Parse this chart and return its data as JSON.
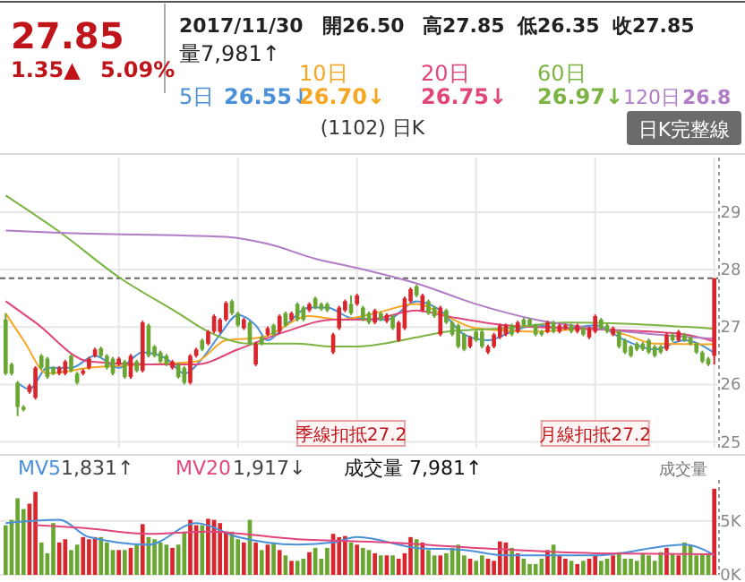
{
  "chart_data": [
    {
      "type": "other",
      "annotations": [
        "27.85",
        "1.35▲",
        "5.09%",
        "2017/11/30",
        "開26.50",
        "高27.85",
        "低26.35",
        "收27.85",
        "量7,981↑",
        "日K完整線"
      ]
    },
    {
      "type": "candlestick",
      "title": "(1102) 日K",
      "categories": [
        null,
        null,
        null,
        null,
        null,
        null,
        null,
        null,
        null,
        null,
        null,
        null,
        null,
        null,
        null,
        null,
        null,
        null,
        null,
        null,
        null,
        null,
        null,
        null,
        null,
        null,
        null,
        null,
        null,
        null,
        null,
        null,
        null,
        null,
        null,
        null,
        null,
        null,
        null,
        null,
        null,
        null,
        null,
        null,
        null,
        null,
        null,
        null,
        null,
        null,
        null,
        null,
        null,
        null,
        null,
        null,
        null,
        null,
        null,
        null,
        null,
        null,
        null,
        null,
        null,
        null,
        null,
        null,
        null,
        null,
        null,
        null,
        null,
        null,
        null,
        null,
        null,
        null,
        null,
        null,
        null,
        null,
        null,
        null,
        null,
        null,
        null,
        null,
        null,
        null,
        null,
        null,
        null,
        null,
        null,
        null,
        null,
        null,
        null,
        null,
        null,
        null,
        null,
        null,
        null,
        null,
        null,
        null,
        null,
        null,
        null,
        null,
        null,
        null,
        null,
        null,
        null,
        null,
        null,
        null
      ],
      "ohlc": [
        [
          27.13,
          27.24,
          26.16,
          26.19
        ],
        [
          26.35,
          26.38,
          26.16,
          26.19
        ],
        [
          26.03,
          26.06,
          25.45,
          25.61
        ],
        [
          25.61,
          25.64,
          25.53,
          25.56
        ],
        [
          25.87,
          26.01,
          25.84,
          25.98
        ],
        [
          25.77,
          26.32,
          25.74,
          26.29
        ],
        [
          26.5,
          26.53,
          26.26,
          26.29
        ],
        [
          26.45,
          26.48,
          26.1,
          26.13
        ],
        [
          26.29,
          26.32,
          26.16,
          26.19
        ],
        [
          26.19,
          26.32,
          26.16,
          26.29
        ],
        [
          26.19,
          26.43,
          26.16,
          26.4
        ],
        [
          26.5,
          26.53,
          26.21,
          26.24
        ],
        [
          26.19,
          26.22,
          26.0,
          26.03
        ],
        [
          26.19,
          26.27,
          26.16,
          26.24
        ],
        [
          26.29,
          26.48,
          26.26,
          26.45
        ],
        [
          26.5,
          26.64,
          26.47,
          26.61
        ],
        [
          26.63,
          26.66,
          26.47,
          26.5
        ],
        [
          26.5,
          26.53,
          26.26,
          26.29
        ],
        [
          26.45,
          26.48,
          26.16,
          26.19
        ],
        [
          26.35,
          26.48,
          26.32,
          26.45
        ],
        [
          26.4,
          26.43,
          26.1,
          26.13
        ],
        [
          26.13,
          26.53,
          26.1,
          26.5
        ],
        [
          26.4,
          26.43,
          26.21,
          26.24
        ],
        [
          26.24,
          27.11,
          26.21,
          27.08
        ],
        [
          27.03,
          27.06,
          26.47,
          26.5
        ],
        [
          26.66,
          26.69,
          26.47,
          26.5
        ],
        [
          26.56,
          26.59,
          26.37,
          26.4
        ],
        [
          26.5,
          26.53,
          26.32,
          26.35
        ],
        [
          26.29,
          26.43,
          26.26,
          26.4
        ],
        [
          26.35,
          26.38,
          26.1,
          26.13
        ],
        [
          26.29,
          26.32,
          26.0,
          26.03
        ],
        [
          26.03,
          26.53,
          26.0,
          26.5
        ],
        [
          26.5,
          26.64,
          26.47,
          26.61
        ],
        [
          26.77,
          26.8,
          26.58,
          26.61
        ],
        [
          26.71,
          26.95,
          26.68,
          26.92
        ],
        [
          26.92,
          27.22,
          26.89,
          27.19
        ],
        [
          26.92,
          27.16,
          26.89,
          27.13
        ],
        [
          27.13,
          27.45,
          27.1,
          27.42
        ],
        [
          27.45,
          27.48,
          27.21,
          27.24
        ],
        [
          27.24,
          27.27,
          27.0,
          27.03
        ],
        [
          26.98,
          27.16,
          26.95,
          27.13
        ],
        [
          27.08,
          27.11,
          26.68,
          26.71
        ],
        [
          26.35,
          26.74,
          26.32,
          26.71
        ],
        [
          26.82,
          26.85,
          26.68,
          26.71
        ],
        [
          26.87,
          27.01,
          26.84,
          26.98
        ],
        [
          27.03,
          27.06,
          26.84,
          26.87
        ],
        [
          26.92,
          27.22,
          26.89,
          27.19
        ],
        [
          27.24,
          27.27,
          27.0,
          27.03
        ],
        [
          27.13,
          27.27,
          27.1,
          27.24
        ],
        [
          27.4,
          27.43,
          27.1,
          27.13
        ],
        [
          27.34,
          27.37,
          27.1,
          27.13
        ],
        [
          27.29,
          27.43,
          27.26,
          27.4
        ],
        [
          27.5,
          27.53,
          27.31,
          27.34
        ],
        [
          27.4,
          27.43,
          27.28,
          27.31
        ],
        [
          27.4,
          27.43,
          27.26,
          27.29
        ],
        [
          26.56,
          26.9,
          26.53,
          26.87
        ],
        [
          26.98,
          27.37,
          26.95,
          27.34
        ],
        [
          27.29,
          27.48,
          27.26,
          27.45
        ],
        [
          27.4,
          27.55,
          27.21,
          27.24
        ],
        [
          27.4,
          27.58,
          27.37,
          27.55
        ],
        [
          27.34,
          27.37,
          27.1,
          27.13
        ],
        [
          27.24,
          27.27,
          27.05,
          27.08
        ],
        [
          27.08,
          27.32,
          27.05,
          27.29
        ],
        [
          27.24,
          27.27,
          27.1,
          27.13
        ],
        [
          27.1,
          27.24,
          27.07,
          27.21
        ],
        [
          27.19,
          27.22,
          26.95,
          26.98
        ],
        [
          26.77,
          27.11,
          26.74,
          27.08
        ],
        [
          26.98,
          27.53,
          26.95,
          27.5
        ],
        [
          27.45,
          27.69,
          27.42,
          27.66
        ],
        [
          27.71,
          27.74,
          27.52,
          27.55
        ],
        [
          27.29,
          27.58,
          27.26,
          27.55
        ],
        [
          27.45,
          27.48,
          27.21,
          27.24
        ],
        [
          27.34,
          27.37,
          27.16,
          27.19
        ],
        [
          26.87,
          27.37,
          26.84,
          27.34
        ],
        [
          27.29,
          27.32,
          27.05,
          27.08
        ],
        [
          27.08,
          27.11,
          26.84,
          26.87
        ],
        [
          27.03,
          27.06,
          26.63,
          26.66
        ],
        [
          26.87,
          26.9,
          26.58,
          26.61
        ],
        [
          26.66,
          26.85,
          26.63,
          26.82
        ],
        [
          26.92,
          26.95,
          26.74,
          26.77
        ],
        [
          26.92,
          26.95,
          26.63,
          26.66
        ],
        [
          26.56,
          26.69,
          26.53,
          26.66
        ],
        [
          26.66,
          26.9,
          26.63,
          26.87
        ],
        [
          26.82,
          27.06,
          26.79,
          27.03
        ],
        [
          26.87,
          27.06,
          26.84,
          27.03
        ],
        [
          27.03,
          27.06,
          26.84,
          26.87
        ],
        [
          26.92,
          27.11,
          26.89,
          27.08
        ],
        [
          27.13,
          27.16,
          27.0,
          27.03
        ],
        [
          27.13,
          27.16,
          27.0,
          27.03
        ],
        [
          27.03,
          27.06,
          26.84,
          26.87
        ],
        [
          26.92,
          26.95,
          26.84,
          26.87
        ],
        [
          26.92,
          27.11,
          26.89,
          27.08
        ],
        [
          27.08,
          27.11,
          26.89,
          26.92
        ],
        [
          26.92,
          27.06,
          26.89,
          27.03
        ],
        [
          26.98,
          27.06,
          26.95,
          27.03
        ],
        [
          27.03,
          27.06,
          26.89,
          26.92
        ],
        [
          26.92,
          27.06,
          26.89,
          27.03
        ],
        [
          26.98,
          27.01,
          26.84,
          26.87
        ],
        [
          26.82,
          27.01,
          26.79,
          26.98
        ],
        [
          26.92,
          27.22,
          26.89,
          27.19
        ],
        [
          27.13,
          27.16,
          26.95,
          26.98
        ],
        [
          27.03,
          27.06,
          26.89,
          26.92
        ],
        [
          26.87,
          27.01,
          26.84,
          26.98
        ],
        [
          26.92,
          26.95,
          26.63,
          26.66
        ],
        [
          26.77,
          26.8,
          26.53,
          26.56
        ],
        [
          26.66,
          26.69,
          26.47,
          26.5
        ],
        [
          26.71,
          26.74,
          26.58,
          26.61
        ],
        [
          26.71,
          26.74,
          26.58,
          26.61
        ],
        [
          26.77,
          26.8,
          26.53,
          26.56
        ],
        [
          26.66,
          26.69,
          26.47,
          26.5
        ],
        [
          26.66,
          26.69,
          26.53,
          26.56
        ],
        [
          26.61,
          26.9,
          26.58,
          26.87
        ],
        [
          26.87,
          26.9,
          26.74,
          26.77
        ],
        [
          26.77,
          26.95,
          26.74,
          26.92
        ],
        [
          26.87,
          26.9,
          26.74,
          26.77
        ],
        [
          26.82,
          26.85,
          26.68,
          26.71
        ],
        [
          26.71,
          26.74,
          26.53,
          26.56
        ],
        [
          26.56,
          26.59,
          26.37,
          26.4
        ],
        [
          26.45,
          26.48,
          26.32,
          26.35
        ],
        [
          26.5,
          27.85,
          26.35,
          27.85
        ]
      ],
      "colors": [
        "#6aa632",
        "#6aa632",
        "#6aa632",
        "#6aa632",
        "#d9262c",
        "#d9262c",
        "#6aa632",
        "#6aa632",
        "#6aa632",
        "#d9262c",
        "#d9262c",
        "#6aa632",
        "#6aa632",
        "#d9262c",
        "#d9262c",
        "#d9262c",
        "#6aa632",
        "#6aa632",
        "#6aa632",
        "#d9262c",
        "#6aa632",
        "#d9262c",
        "#6aa632",
        "#d9262c",
        "#6aa632",
        "#6aa632",
        "#6aa632",
        "#6aa632",
        "#d9262c",
        "#6aa632",
        "#6aa632",
        "#d9262c",
        "#d9262c",
        "#6aa632",
        "#d9262c",
        "#d9262c",
        "#d9262c",
        "#d9262c",
        "#6aa632",
        "#6aa632",
        "#d9262c",
        "#6aa632",
        "#d9262c",
        "#6aa632",
        "#d9262c",
        "#6aa632",
        "#d9262c",
        "#6aa632",
        "#d9262c",
        "#6aa632",
        "#6aa632",
        "#d9262c",
        "#6aa632",
        "#6aa632",
        "#6aa632",
        "#d9262c",
        "#d9262c",
        "#d9262c",
        "#6aa632",
        "#d9262c",
        "#6aa632",
        "#6aa632",
        "#d9262c",
        "#6aa632",
        "#d9262c",
        "#6aa632",
        "#d9262c",
        "#d9262c",
        "#d9262c",
        "#6aa632",
        "#d9262c",
        "#6aa632",
        "#6aa632",
        "#d9262c",
        "#6aa632",
        "#6aa632",
        "#6aa632",
        "#6aa632",
        "#d9262c",
        "#6aa632",
        "#6aa632",
        "#d9262c",
        "#d9262c",
        "#d9262c",
        "#d9262c",
        "#6aa632",
        "#d9262c",
        "#6aa632",
        "#6aa632",
        "#6aa632",
        "#6aa632",
        "#d9262c",
        "#6aa632",
        "#d9262c",
        "#d9262c",
        "#6aa632",
        "#d9262c",
        "#6aa632",
        "#d9262c",
        "#d9262c",
        "#6aa632",
        "#6aa632",
        "#d9262c",
        "#6aa632",
        "#6aa632",
        "#6aa632",
        "#6aa632",
        "#6aa632",
        "#6aa632",
        "#6aa632",
        "#6aa632",
        "#d9262c",
        "#6aa632",
        "#d9262c",
        "#6aa632",
        "#6aa632",
        "#6aa632",
        "#6aa632",
        "#6aa632",
        "#d9262c"
      ],
      "series": [
        {
          "name": "5日",
          "type": "line",
          "color": "#4a90d9",
          "values": [
            null,
            null,
            26.03,
            null,
            25.92,
            null,
            null,
            26.29,
            null,
            null,
            null,
            26.29,
            null,
            null,
            null,
            26.5,
            null,
            null,
            null,
            26.29,
            null,
            null,
            null,
            26.56,
            null,
            null,
            null,
            26.45,
            null,
            null,
            26.19,
            null,
            null,
            26.45,
            null,
            null,
            26.87,
            null,
            null,
            27.21,
            null,
            null,
            27.03,
            null,
            26.77,
            null,
            null,
            27.03,
            null,
            null,
            null,
            27.34,
            null,
            null,
            27.34,
            null,
            null,
            null,
            27.16,
            null,
            null,
            null,
            null,
            null,
            27.13,
            null,
            null,
            null,
            null,
            27.45,
            null,
            null,
            null,
            27.29,
            null,
            null,
            null,
            26.87,
            null,
            null,
            null,
            26.77,
            null,
            null,
            null,
            26.92,
            null,
            null,
            null,
            27.03,
            null,
            null,
            null,
            null,
            26.98,
            null,
            null,
            null,
            null,
            27.03,
            null,
            null,
            null,
            null,
            26.77,
            null,
            null,
            null,
            null,
            26.61,
            null,
            null,
            null,
            null,
            26.77,
            null,
            null,
            null,
            null,
            26.55
          ]
        },
        {
          "name": "10日",
          "type": "line",
          "color": "#f5a623",
          "values": [
            27.24,
            null,
            null,
            26.77,
            null,
            null,
            null,
            26.19,
            null,
            null,
            null,
            null,
            null,
            null,
            26.29,
            null,
            null,
            null,
            null,
            null,
            null,
            null,
            null,
            null,
            26.35,
            null,
            null,
            null,
            null,
            null,
            null,
            null,
            26.4,
            null,
            null,
            null,
            null,
            26.77,
            null,
            null,
            null,
            null,
            null,
            26.82,
            null,
            null,
            null,
            null,
            null,
            null,
            null,
            27.19,
            null,
            null,
            null,
            null,
            27.13,
            null,
            null,
            null,
            null,
            null,
            27.24,
            null,
            null,
            null,
            null,
            null,
            null,
            27.4,
            null,
            null,
            null,
            null,
            27.19,
            null,
            null,
            null,
            null,
            26.98,
            null,
            null,
            null,
            null,
            null,
            null,
            null,
            null,
            null,
            26.92,
            null,
            null,
            null,
            null,
            null,
            null,
            null,
            null,
            null,
            26.98,
            null,
            null,
            null,
            null,
            26.87,
            null,
            null,
            null,
            null,
            26.71,
            null,
            null,
            null,
            null,
            null,
            null,
            null,
            null,
            null,
            26.7
          ]
        },
        {
          "name": "20日",
          "type": "line",
          "color": "#e0457b",
          "values": [
            27.45,
            null,
            null,
            null,
            null,
            27.08,
            null,
            null,
            null,
            null,
            null,
            null,
            null,
            null,
            26.4,
            null,
            null,
            null,
            null,
            null,
            null,
            null,
            null,
            null,
            26.35,
            null,
            null,
            null,
            null,
            null,
            null,
            null,
            26.35,
            null,
            null,
            null,
            null,
            null,
            null,
            26.61,
            null,
            null,
            null,
            null,
            null,
            null,
            null,
            26.92,
            null,
            null,
            null,
            null,
            null,
            null,
            null,
            27.13,
            null,
            null,
            null,
            null,
            null,
            27.13,
            null,
            null,
            null,
            null,
            null,
            null,
            null,
            27.29,
            null,
            null,
            null,
            null,
            27.19,
            null,
            null,
            null,
            null,
            null,
            null,
            null,
            null,
            null,
            27.03,
            null,
            null,
            null,
            null,
            null,
            null,
            null,
            null,
            null,
            26.98,
            null,
            null,
            null,
            null,
            null,
            null,
            null,
            null,
            null,
            26.94,
            null,
            null,
            null,
            null,
            null,
            null,
            null,
            null,
            null,
            26.87,
            null,
            null,
            null,
            null,
            26.75
          ]
        },
        {
          "name": "60日",
          "type": "line",
          "color": "#7cb342",
          "values": [
            29.29,
            null,
            null,
            null,
            null,
            null,
            null,
            null,
            null,
            28.66,
            null,
            null,
            null,
            null,
            null,
            null,
            null,
            null,
            null,
            27.87,
            null,
            null,
            null,
            null,
            null,
            null,
            null,
            null,
            null,
            27.24,
            null,
            null,
            null,
            null,
            26.92,
            null,
            null,
            null,
            null,
            null,
            null,
            26.71,
            null,
            null,
            null,
            null,
            null,
            null,
            null,
            26.71,
            null,
            null,
            null,
            null,
            null,
            26.66,
            null,
            null,
            null,
            26.66,
            null,
            null,
            null,
            null,
            null,
            null,
            null,
            null,
            null,
            26.82,
            null,
            null,
            null,
            null,
            26.92,
            null,
            null,
            null,
            null,
            null,
            null,
            null,
            null,
            null,
            26.98,
            null,
            null,
            null,
            null,
            null,
            null,
            null,
            null,
            null,
            27.08,
            null,
            null,
            null,
            null,
            null,
            null,
            null,
            null,
            null,
            27.06,
            null,
            null,
            null,
            null,
            null,
            null,
            null,
            null,
            null,
            null,
            null,
            null,
            null,
            null,
            26.97
          ]
        },
        {
          "name": "120日",
          "type": "line",
          "color": "#b07cc6",
          "values": [
            28.68,
            null,
            null,
            null,
            null,
            null,
            null,
            null,
            null,
            28.64,
            null,
            null,
            null,
            null,
            null,
            null,
            null,
            null,
            null,
            null,
            null,
            null,
            null,
            null,
            null,
            null,
            null,
            null,
            null,
            null,
            null,
            null,
            null,
            null,
            null,
            null,
            null,
            28.57,
            null,
            null,
            null,
            null,
            null,
            null,
            28.45,
            null,
            null,
            null,
            null,
            null,
            null,
            null,
            28.19,
            null,
            null,
            null,
            null,
            null,
            null,
            28.03,
            null,
            null,
            null,
            null,
            null,
            null,
            null,
            null,
            null,
            27.76,
            null,
            null,
            null,
            null,
            null,
            null,
            null,
            null,
            null,
            27.4,
            null,
            null,
            null,
            null,
            null,
            null,
            null,
            null,
            null,
            27.13,
            null,
            null,
            null,
            null,
            null,
            null,
            null,
            null,
            null,
            26.98,
            null,
            null,
            null,
            null,
            null,
            null,
            null,
            null,
            null,
            26.87,
            null,
            null,
            null,
            null,
            null,
            null,
            null,
            null,
            null,
            26.8
          ]
        }
      ],
      "ylim": [
        24.9,
        29.95
      ],
      "yticks": [
        25,
        26,
        27,
        28,
        29
      ],
      "grid": true,
      "legend": "top",
      "ref_lines": [
        {
          "axis": "y",
          "value": 27.85,
          "color": "#666666",
          "line_style": "dashed"
        }
      ],
      "annotations": [
        "26.55↓",
        "26.70↓",
        "26.75↓",
        "26.97↓",
        "26.8",
        "季線扣抵27.2",
        "月線扣抵27.2"
      ]
    },
    {
      "type": "bar",
      "ylabel": "成交量",
      "categories": [
        null,
        null,
        null,
        null,
        null,
        null,
        null,
        null,
        null,
        null,
        null,
        null,
        null,
        null,
        null,
        null,
        null,
        null,
        null,
        null,
        null,
        null,
        null,
        null,
        null,
        null,
        null,
        null,
        null,
        null,
        null,
        null,
        null,
        null,
        null,
        null,
        null,
        null,
        null,
        null,
        null,
        null,
        null,
        null,
        null,
        null,
        null,
        null,
        null,
        null,
        null,
        null,
        null,
        null,
        null,
        null,
        null,
        null,
        null,
        null,
        null,
        null,
        null,
        null,
        null,
        null,
        null,
        null,
        null,
        null,
        null,
        null,
        null,
        null,
        null,
        null,
        null,
        null,
        null,
        null,
        null,
        null,
        null,
        null,
        null,
        null,
        null,
        null,
        null,
        null,
        null,
        null,
        null,
        null,
        null,
        null,
        null,
        null,
        null,
        null,
        null,
        null,
        null,
        null,
        null,
        null,
        null,
        null,
        null,
        null,
        null,
        null,
        null,
        null,
        null,
        null,
        null,
        null,
        null,
        null
      ],
      "values": [
        4600,
        5100,
        7100,
        6100,
        6600,
        7700,
        3000,
        2000,
        4800,
        3000,
        3300,
        2300,
        2800,
        3500,
        3300,
        3500,
        3500,
        3000,
        2300,
        2300,
        2300,
        2500,
        2800,
        4700,
        3500,
        3300,
        3000,
        2800,
        2500,
        2800,
        4000,
        5100,
        4600,
        4600,
        5200,
        5100,
        4800,
        4000,
        4000,
        3300,
        3000,
        5100,
        3000,
        2300,
        2800,
        3000,
        2300,
        1800,
        1300,
        1300,
        1500,
        2100,
        2500,
        1500,
        2500,
        3800,
        3500,
        3600,
        3000,
        2800,
        2500,
        2300,
        2000,
        1800,
        1800,
        1800,
        1500,
        2000,
        3500,
        3300,
        3000,
        2300,
        1800,
        1800,
        2000,
        2500,
        2800,
        1800,
        1500,
        1300,
        1800,
        1500,
        1300,
        3100,
        3000,
        2500,
        2000,
        1500,
        1000,
        1000,
        1500,
        2300,
        2800,
        1800,
        1500,
        1300,
        1000,
        1300,
        1500,
        1800,
        1300,
        1500,
        1800,
        2100,
        1500,
        1500,
        1300,
        2000,
        1800,
        1300,
        2100,
        2500,
        2000,
        1800,
        3000,
        2800,
        1800,
        1900,
        2000,
        7981
      ],
      "colors": [
        "#6aa632",
        "#6aa632",
        "#6aa632",
        "#6aa632",
        "#d9262c",
        "#d9262c",
        "#6aa632",
        "#6aa632",
        "#6aa632",
        "#d9262c",
        "#d9262c",
        "#6aa632",
        "#6aa632",
        "#d9262c",
        "#d9262c",
        "#d9262c",
        "#6aa632",
        "#6aa632",
        "#6aa632",
        "#d9262c",
        "#6aa632",
        "#d9262c",
        "#6aa632",
        "#d9262c",
        "#6aa632",
        "#6aa632",
        "#6aa632",
        "#6aa632",
        "#d9262c",
        "#6aa632",
        "#6aa632",
        "#d9262c",
        "#d9262c",
        "#6aa632",
        "#d9262c",
        "#d9262c",
        "#d9262c",
        "#d9262c",
        "#6aa632",
        "#6aa632",
        "#d9262c",
        "#6aa632",
        "#d9262c",
        "#6aa632",
        "#d9262c",
        "#6aa632",
        "#d9262c",
        "#6aa632",
        "#d9262c",
        "#6aa632",
        "#6aa632",
        "#d9262c",
        "#6aa632",
        "#6aa632",
        "#6aa632",
        "#d9262c",
        "#d9262c",
        "#d9262c",
        "#6aa632",
        "#d9262c",
        "#6aa632",
        "#6aa632",
        "#d9262c",
        "#6aa632",
        "#d9262c",
        "#6aa632",
        "#d9262c",
        "#d9262c",
        "#d9262c",
        "#6aa632",
        "#d9262c",
        "#6aa632",
        "#6aa632",
        "#d9262c",
        "#6aa632",
        "#6aa632",
        "#6aa632",
        "#6aa632",
        "#d9262c",
        "#6aa632",
        "#6aa632",
        "#d9262c",
        "#d9262c",
        "#d9262c",
        "#d9262c",
        "#6aa632",
        "#d9262c",
        "#6aa632",
        "#6aa632",
        "#6aa632",
        "#6aa632",
        "#d9262c",
        "#6aa632",
        "#d9262c",
        "#d9262c",
        "#6aa632",
        "#d9262c",
        "#6aa632",
        "#d9262c",
        "#d9262c",
        "#6aa632",
        "#6aa632",
        "#d9262c",
        "#6aa632",
        "#6aa632",
        "#6aa632",
        "#6aa632",
        "#6aa632",
        "#6aa632",
        "#6aa632",
        "#6aa632",
        "#d9262c",
        "#6aa632",
        "#d9262c",
        "#6aa632",
        "#6aa632",
        "#6aa632",
        "#6aa632",
        "#6aa632",
        "#d9262c"
      ],
      "series": [
        {
          "name": "MV5",
          "type": "line",
          "color": "#4a90d9",
          "values": [
            4800,
            null,
            null,
            null,
            null,
            null,
            null,
            null,
            null,
            5100,
            null,
            null,
            null,
            null,
            3500,
            null,
            null,
            null,
            null,
            null,
            null,
            null,
            null,
            null,
            2800,
            null,
            null,
            null,
            null,
            null,
            null,
            null,
            4800,
            null,
            null,
            null,
            null,
            null,
            null,
            3500,
            null,
            null,
            null,
            null,
            null,
            null,
            null,
            null,
            null,
            2800,
            null,
            null,
            null,
            null,
            null,
            3000,
            null,
            null,
            null,
            3500,
            null,
            null,
            null,
            null,
            null,
            null,
            null,
            null,
            null,
            2500,
            null,
            null,
            null,
            null,
            null,
            null,
            null,
            2300,
            null,
            null,
            null,
            null,
            null,
            null,
            1800,
            null,
            null,
            null,
            null,
            null,
            null,
            null,
            null,
            null,
            null,
            null,
            null,
            null,
            null,
            1800,
            null,
            null,
            null,
            null,
            null,
            null,
            null,
            null,
            null,
            null,
            null,
            null,
            null,
            null,
            2800,
            null,
            null,
            null,
            null,
            1831
          ]
        },
        {
          "name": "MV20",
          "type": "line",
          "color": "#e0457b",
          "values": [
            null,
            null,
            null,
            null,
            null,
            4600,
            null,
            null,
            null,
            null,
            null,
            null,
            null,
            null,
            4300,
            null,
            null,
            null,
            null,
            null,
            null,
            null,
            null,
            null,
            3800,
            null,
            null,
            null,
            null,
            null,
            null,
            null,
            null,
            null,
            4000,
            null,
            null,
            null,
            null,
            null,
            null,
            null,
            null,
            null,
            null,
            null,
            null,
            null,
            null,
            3300,
            null,
            null,
            null,
            null,
            null,
            null,
            null,
            null,
            null,
            null,
            null,
            null,
            null,
            null,
            3000,
            null,
            null,
            null,
            null,
            null,
            null,
            null,
            null,
            null,
            null,
            null,
            null,
            null,
            null,
            2500,
            null,
            null,
            null,
            null,
            null,
            null,
            null,
            null,
            null,
            null,
            null,
            null,
            null,
            null,
            null,
            null,
            null,
            null,
            null,
            2000,
            null,
            null,
            null,
            null,
            null,
            null,
            null,
            null,
            null,
            null,
            null,
            null,
            null,
            null,
            null,
            null,
            null,
            null,
            null,
            1917
          ]
        }
      ],
      "ylim": [
        0,
        8800
      ],
      "yticks": [
        {
          "value": 0,
          "label": "0K"
        },
        {
          "value": 5000,
          "label": "5K"
        }
      ],
      "grid": "y",
      "legend": "top",
      "annotations": [
        "1,831↑",
        "1,917↓",
        "成交量 7,981↑"
      ]
    }
  ]
}
